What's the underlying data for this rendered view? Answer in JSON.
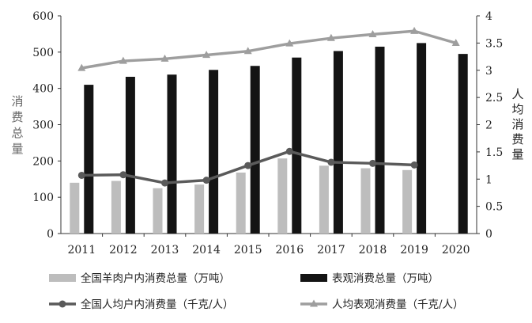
{
  "chart_data": {
    "type": "bar",
    "title": "",
    "categories": [
      "2011",
      "2012",
      "2013",
      "2014",
      "2015",
      "2016",
      "2017",
      "2018",
      "2019",
      "2020"
    ],
    "y_left": {
      "label_chars": [
        "消",
        "费",
        "总",
        "量"
      ],
      "ylim": [
        0,
        600
      ],
      "ticks": [
        "0",
        "100",
        "200",
        "300",
        "400",
        "500",
        "600"
      ]
    },
    "y_right": {
      "label_chars": [
        "人",
        "均",
        "消",
        "费",
        "量"
      ],
      "ylim": [
        0,
        4
      ],
      "ticks": [
        "0",
        "0.5",
        "1",
        "1.5",
        "2",
        "2.5",
        "3",
        "3.5",
        "4"
      ]
    },
    "series": [
      {
        "name": "全国羊肉户内消费总量（万吨）",
        "type": "bar",
        "axis": "left",
        "color": "#bdbdbd",
        "values": [
          140,
          145,
          125,
          135,
          168,
          207,
          187,
          180,
          175,
          null
        ]
      },
      {
        "name": "表观消费总量（万吨）",
        "type": "bar",
        "axis": "left",
        "color": "#141414",
        "values": [
          410,
          432,
          438,
          451,
          462,
          485,
          503,
          515,
          525,
          495
        ]
      },
      {
        "name": "全国人均户内消费量（千克/人）",
        "type": "line",
        "marker": "circle",
        "axis": "right",
        "color": "#5a5a5a",
        "values": [
          1.07,
          1.08,
          0.93,
          0.98,
          1.25,
          1.51,
          1.31,
          1.29,
          1.26,
          null
        ]
      },
      {
        "name": "人均表观消费量（千克/人）",
        "type": "line",
        "marker": "triangle",
        "axis": "right",
        "color": "#9e9e9e",
        "values": [
          3.04,
          3.17,
          3.21,
          3.28,
          3.35,
          3.49,
          3.59,
          3.66,
          3.72,
          3.5
        ]
      }
    ],
    "legend": {
      "position": "bottom",
      "columns": 2
    },
    "grid": false
  }
}
